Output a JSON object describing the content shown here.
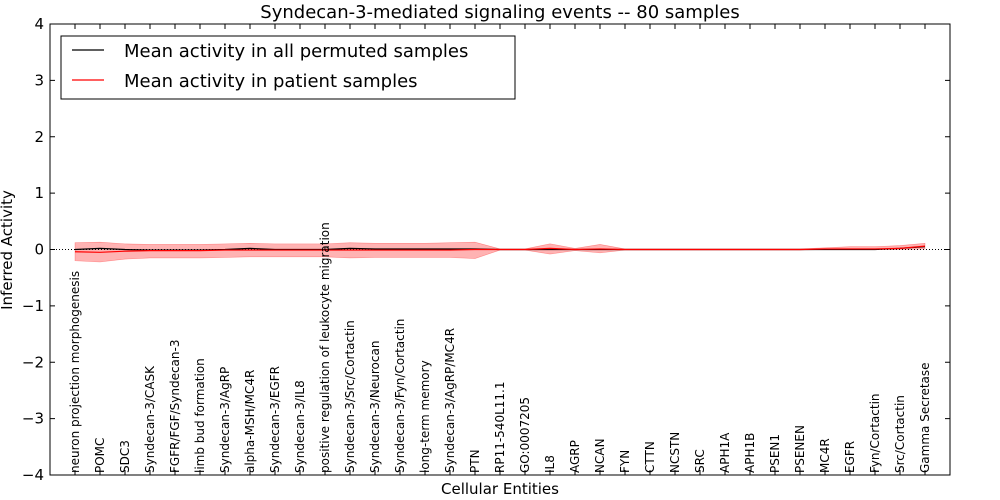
{
  "chart_data": {
    "type": "line",
    "title": "Syndecan-3-mediated signaling events -- 80 samples",
    "xlabel": "Cellular Entities",
    "ylabel": "Inferred Activity",
    "ylim": [
      -4,
      4
    ],
    "yticks": [
      4,
      3,
      2,
      1,
      0,
      -1,
      -2,
      -3,
      -4
    ],
    "ytick_labels": [
      "4",
      "3",
      "2",
      "1",
      "0",
      "−1",
      "−2",
      "−3",
      "−4"
    ],
    "legend": {
      "placement": "top-left",
      "entries": [
        "Mean activity in all permuted samples",
        "Mean activity in patient samples"
      ]
    },
    "colors": {
      "permuted": "#000000",
      "patient": "#ff0000",
      "band": "#ff8080",
      "zero_line": "#000000"
    },
    "categories": [
      "neuron projection morphogenesis",
      "POMC",
      "SDC3",
      "Syndecan-3/CASK",
      "FGFR/FGF/Syndecan-3",
      "limb bud formation",
      "Syndecan-3/AgRP",
      "alpha-MSH/MC4R",
      "Syndecan-3/EGFR",
      "Syndecan-3/IL8",
      "positive regulation of leukocyte migration",
      "Syndecan-3/Src/Cortactin",
      "Syndecan-3/Neurocan",
      "Syndecan-3/Fyn/Cortactin",
      "long-term memory",
      "Syndecan-3/AgRP/MC4R",
      "PTN",
      "RP11-540L11.1",
      "GO:0007205",
      "IL8",
      "AGRP",
      "NCAN",
      "FYN",
      "CTTN",
      "NCSTN",
      "SRC",
      "APH1A",
      "APH1B",
      "PSEN1",
      "PSENEN",
      "MC4R",
      "EGFR",
      "Fyn/Cortactin",
      "Src/Cortactin",
      "Gamma Secretase"
    ],
    "series": [
      {
        "name": "Mean activity in all permuted samples",
        "values": [
          0.0,
          0.02,
          0.0,
          -0.01,
          -0.01,
          -0.01,
          0.0,
          0.02,
          0.0,
          0.0,
          0.0,
          0.02,
          0.01,
          0.01,
          0.01,
          0.01,
          0.01,
          0.0,
          0.0,
          0.0,
          0.0,
          0.0,
          0.0,
          0.0,
          0.0,
          0.0,
          0.0,
          0.0,
          0.0,
          0.0,
          0.0,
          0.0,
          0.0,
          0.02,
          0.05
        ]
      },
      {
        "name": "Mean activity in patient samples",
        "values": [
          -0.04,
          -0.05,
          -0.03,
          -0.02,
          -0.02,
          -0.02,
          -0.01,
          -0.01,
          -0.01,
          -0.01,
          -0.01,
          -0.01,
          -0.01,
          -0.01,
          -0.01,
          -0.01,
          0.0,
          0.0,
          0.0,
          0.02,
          0.0,
          0.01,
          0.0,
          0.0,
          0.0,
          0.0,
          0.0,
          0.0,
          0.0,
          0.0,
          0.01,
          0.01,
          0.01,
          0.02,
          0.06
        ]
      }
    ],
    "band": {
      "name": "patient sample spread",
      "lower": [
        -0.2,
        -0.22,
        -0.17,
        -0.15,
        -0.15,
        -0.15,
        -0.14,
        -0.13,
        -0.13,
        -0.13,
        -0.13,
        -0.15,
        -0.14,
        -0.14,
        -0.14,
        -0.14,
        -0.16,
        -0.01,
        -0.01,
        -0.08,
        -0.02,
        -0.06,
        -0.01,
        -0.01,
        -0.01,
        -0.01,
        -0.01,
        -0.01,
        -0.01,
        -0.01,
        0.0,
        0.0,
        0.0,
        0.0,
        0.01
      ],
      "upper": [
        0.12,
        0.13,
        0.1,
        0.09,
        0.09,
        0.09,
        0.1,
        0.11,
        0.1,
        0.1,
        0.1,
        0.12,
        0.11,
        0.11,
        0.11,
        0.12,
        0.13,
        0.01,
        0.01,
        0.1,
        0.02,
        0.09,
        0.01,
        0.01,
        0.01,
        0.01,
        0.01,
        0.01,
        0.01,
        0.01,
        0.03,
        0.05,
        0.05,
        0.07,
        0.11
      ]
    }
  }
}
